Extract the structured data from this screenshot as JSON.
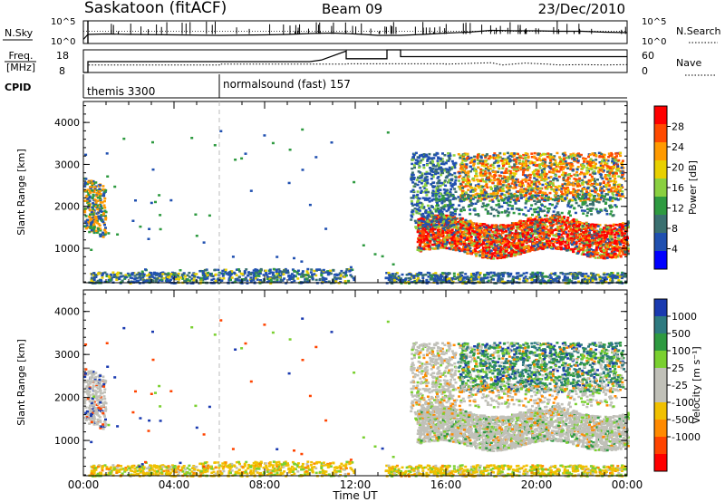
{
  "header": {
    "station": "Saskatoon (fitACF)",
    "beam": "Beam 09",
    "date": "23/Dec/2010"
  },
  "noise_panel": {
    "left_label": "N.Sky",
    "right_label": "N.Search",
    "left_ticks": [
      "10^5",
      "10^0"
    ],
    "right_ticks": [
      "10^5",
      "10^0"
    ]
  },
  "freq_panel": {
    "left_label_1": "Freq.",
    "left_label_2": "[MHz]",
    "right_label": "Nave",
    "left_ticks": [
      "18",
      "8"
    ],
    "right_ticks": [
      "60",
      "0"
    ]
  },
  "cpid_panel": {
    "label": "CPID",
    "segments": [
      {
        "name": "themis 3300",
        "start_hour": 0,
        "end_hour": 6
      },
      {
        "name": "normalsound (fast) 157",
        "start_hour": 6,
        "end_hour": 24
      }
    ]
  },
  "power_panel": {
    "ylabel": "Slant Range [km]",
    "colorbar_label": "Power [dB]",
    "colorbar_ticks": [
      "28",
      "24",
      "20",
      "16",
      "12",
      "8",
      "4"
    ],
    "colorbar_colors": [
      "#ff0000",
      "#ff4a00",
      "#ff9a00",
      "#e8d000",
      "#8ad040",
      "#2e9a40",
      "#3a7070",
      "#2050b0",
      "#0000ff"
    ]
  },
  "velocity_panel": {
    "ylabel": "Slant Range [km]",
    "colorbar_label": "Velocity [m s⁻¹]",
    "colorbar_ticks": [
      "1000",
      "500",
      "100",
      "25",
      "-25",
      "-100",
      "-500",
      "-1000"
    ],
    "colorbar_colors": [
      "#1a3ab0",
      "#2e7a80",
      "#2e9a40",
      "#7ad030",
      "#c0c0b8",
      "#c0c0b8",
      "#f0c000",
      "#ff8a00",
      "#ff4400",
      "#ff0000"
    ]
  },
  "axes": {
    "xlabel": "Time UT",
    "x_ticks": [
      "00:00",
      "04:00",
      "08:00",
      "12:00",
      "16:00",
      "20:00",
      "00:00"
    ],
    "y_ticks": [
      "1000",
      "2000",
      "3000",
      "4000"
    ]
  },
  "chart_data": [
    {
      "type": "line",
      "title": "Saskatoon (fitACF)",
      "subtitle": "Beam 09",
      "xlabel": "",
      "ylabel": "N.Sky",
      "xlim": [
        0,
        24
      ],
      "x_ticks": [],
      "note_scale": "log",
      "ylim_log10": [
        0,
        5
      ],
      "series": [
        {
          "name": "N.Sky",
          "x": [
            0,
            0.2,
            1,
            2,
            4,
            6,
            8,
            9,
            10,
            11,
            12,
            13,
            14,
            15,
            16,
            17,
            17.5,
            18,
            19,
            20,
            21,
            22,
            23,
            24
          ],
          "y_log10": [
            0.9,
            2.0,
            2.1,
            2.0,
            1.9,
            1.8,
            1.9,
            2.0,
            2.2,
            2.3,
            2.1,
            1.8,
            1.8,
            2.0,
            2.3,
            2.5,
            2.7,
            2.9,
            2.8,
            2.8,
            2.7,
            2.7,
            2.5,
            2.4
          ]
        }
      ]
    },
    {
      "type": "line",
      "xlabel": "",
      "ylabel": "Freq. [MHz]",
      "xlim": [
        0,
        24
      ],
      "ylim": [
        8,
        18
      ],
      "series": [
        {
          "name": "Freq. [MHz]",
          "x": [
            0,
            0.2,
            0.2,
            10,
            10.5,
            10.5,
            11.6,
            11.6,
            13.4,
            13.4,
            14,
            14,
            17.2,
            17.2,
            21,
            21,
            24
          ],
          "y": [
            8,
            8,
            12.8,
            12.8,
            13.5,
            13.5,
            17.5,
            14.1,
            14.1,
            18,
            18,
            15,
            15,
            15,
            15,
            15,
            15
          ]
        },
        {
          "name": "Nave",
          "x": [
            0,
            0.2,
            0.2,
            6,
            6,
            11.6,
            11.6,
            16,
            16,
            18,
            18.5,
            19.5,
            20.5,
            21,
            22,
            23,
            24
          ],
          "y": [
            0,
            0,
            20,
            20,
            22,
            22,
            23,
            23,
            22,
            26,
            20,
            25,
            22,
            20,
            21,
            20,
            21
          ]
        }
      ]
    },
    {
      "type": "heatmap",
      "xlabel": "",
      "ylabel": "Slant Range [km]",
      "xlim": [
        0,
        24
      ],
      "ylim": [
        180,
        4500
      ],
      "colorbar": {
        "label": "Power [dB]",
        "range": [
          0,
          30
        ]
      },
      "cells": [
        {
          "x": [
            0,
            0.9
          ],
          "y": [
            1500,
            2700
          ],
          "value": 20
        },
        {
          "x": [
            0.9,
            11.8
          ],
          "y": [
            180,
            450
          ],
          "value": 10
        },
        {
          "x": [
            14.9,
            24
          ],
          "y": [
            900,
            1800
          ],
          "value": 24
        },
        {
          "x": [
            16.5,
            24
          ],
          "y": [
            2100,
            3300
          ],
          "value": 22
        },
        {
          "x": [
            14.5,
            24
          ],
          "y": [
            180,
            450
          ],
          "value": 10
        }
      ]
    },
    {
      "type": "heatmap",
      "xlabel": "Time UT",
      "ylabel": "Slant Range [km]",
      "xlim": [
        0,
        24
      ],
      "ylim": [
        180,
        4500
      ],
      "colorbar": {
        "label": "Velocity [m s⁻¹]",
        "range": [
          -1000,
          1000
        ]
      },
      "cells": [
        {
          "x": [
            0,
            0.9
          ],
          "y": [
            1500,
            2700
          ],
          "value": 0
        },
        {
          "x": [
            0.9,
            11.8
          ],
          "y": [
            180,
            450
          ],
          "value": -60
        },
        {
          "x": [
            14.5,
            24
          ],
          "y": [
            1100,
            2300
          ],
          "value": 0
        },
        {
          "x": [
            16.5,
            24
          ],
          "y": [
            2200,
            3300
          ],
          "value": 120
        },
        {
          "x": [
            14.5,
            24
          ],
          "y": [
            180,
            450
          ],
          "value": -40
        }
      ]
    }
  ]
}
